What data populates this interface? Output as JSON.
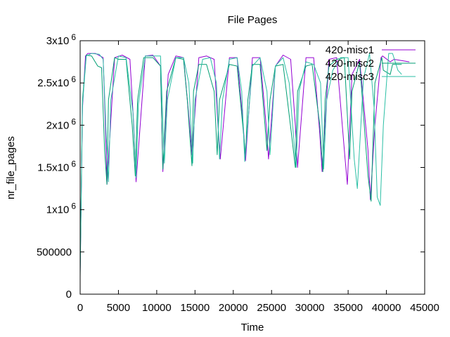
{
  "chart_data": {
    "type": "line",
    "title": "File Pages",
    "xlabel": "Time",
    "ylabel": "nr_file_pages",
    "xlim": [
      0,
      45000
    ],
    "ylim": [
      0,
      3000000
    ],
    "x_ticks": [
      {
        "value": 0,
        "label": "0"
      },
      {
        "value": 5000,
        "label": "5000"
      },
      {
        "value": 10000,
        "label": "10000"
      },
      {
        "value": 15000,
        "label": "15000"
      },
      {
        "value": 20000,
        "label": "20000"
      },
      {
        "value": 25000,
        "label": "25000"
      },
      {
        "value": 30000,
        "label": "30000"
      },
      {
        "value": 35000,
        "label": "35000"
      },
      {
        "value": 40000,
        "label": "40000"
      },
      {
        "value": 45000,
        "label": "45000"
      }
    ],
    "y_ticks": [
      {
        "value": 0,
        "base": "0",
        "sup": ""
      },
      {
        "value": 500000,
        "base": "500000",
        "sup": ""
      },
      {
        "value": 1000000,
        "base": "1x10",
        "sup": "6"
      },
      {
        "value": 1500000,
        "base": "1.5x10",
        "sup": "6"
      },
      {
        "value": 2000000,
        "base": "2x10",
        "sup": "6"
      },
      {
        "value": 2500000,
        "base": "2.5x10",
        "sup": "6"
      },
      {
        "value": 3000000,
        "base": "3x10",
        "sup": "6"
      }
    ],
    "grid": false,
    "legend_position": "top-right",
    "series": [
      {
        "name": "420-misc1",
        "color": "#9400d3",
        "x": [
          0,
          300,
          700,
          1000,
          2000,
          3000,
          3300,
          3500,
          4500,
          5500,
          6500,
          7000,
          7300,
          8500,
          9500,
          10500,
          10800,
          11500,
          12500,
          13500,
          14300,
          14600,
          15500,
          16500,
          17500,
          18000,
          18300,
          19500,
          20500,
          21300,
          21600,
          22500,
          23500,
          24300,
          24600,
          25500,
          26500,
          27500,
          28100,
          28400,
          29500,
          30500,
          31300,
          31600,
          32500,
          33500,
          34600,
          34900,
          35500,
          36500,
          37600,
          37900,
          38500,
          39300,
          39500,
          40500,
          41000,
          43000
        ],
        "y": [
          250000,
          2200000,
          2820000,
          2850000,
          2850000,
          2800000,
          2000000,
          1300000,
          2800000,
          2830000,
          2780000,
          2000000,
          1330000,
          2820000,
          2830000,
          2700000,
          1450000,
          2600000,
          2820000,
          2800000,
          2000000,
          1650000,
          2800000,
          2820000,
          2780000,
          2000000,
          1600000,
          2800000,
          2800000,
          2000000,
          1580000,
          2800000,
          2800000,
          2000000,
          1600000,
          2700000,
          2830000,
          2780000,
          2000000,
          1500000,
          2800000,
          2800000,
          1900000,
          1450000,
          2780000,
          2800000,
          1600000,
          1300000,
          2600000,
          2780000,
          1700000,
          1120000,
          2000000,
          2800000,
          2820000,
          2750000,
          2780000,
          2750000
        ]
      },
      {
        "name": "420-misc2",
        "color": "#009e73",
        "x": [
          0,
          300,
          800,
          1500,
          2300,
          2800,
          3200,
          3500,
          3700,
          4500,
          5000,
          6000,
          6800,
          7200,
          7500,
          8300,
          9500,
          10500,
          10800,
          11300,
          12500,
          13500,
          14000,
          14600,
          14800,
          15500,
          16500,
          17500,
          17900,
          18200,
          19500,
          20500,
          21600,
          21900,
          22500,
          23500,
          24400,
          24800,
          25500,
          26500,
          27600,
          28100,
          28400,
          29500,
          30300,
          31300,
          31700,
          32000,
          32500,
          33500,
          34500,
          35200,
          35500,
          36500,
          37600,
          38000,
          38500,
          39400,
          39600,
          40500,
          40800,
          41000,
          42000
        ],
        "y": [
          200000,
          2300000,
          2830000,
          2820000,
          2700000,
          2680000,
          1700000,
          1300000,
          2300000,
          2800000,
          2780000,
          2780000,
          2000000,
          1400000,
          2300000,
          2800000,
          2800000,
          2700000,
          1480000,
          2400000,
          2800000,
          2780000,
          2300000,
          1520000,
          2400000,
          2720000,
          2720000,
          2400000,
          1650000,
          2300000,
          2720000,
          2700000,
          1650000,
          2300000,
          2720000,
          2720000,
          1700000,
          2300000,
          2700000,
          2720000,
          1900000,
          1500000,
          2400000,
          2700000,
          2720000,
          2000000,
          1450000,
          2300000,
          2700000,
          2780000,
          2800000,
          1600000,
          2400000,
          2750000,
          1400000,
          1100000,
          2500000,
          2800000,
          2650000,
          2600000,
          2720000,
          2720000,
          2720000
        ]
      },
      {
        "name": "420-misc3",
        "color": "#2bbfa5",
        "x": [
          0,
          300,
          800,
          1500,
          2500,
          3000,
          3400,
          3700,
          4000,
          5000,
          6000,
          6900,
          7300,
          7600,
          8500,
          9500,
          10500,
          11000,
          11400,
          12500,
          13500,
          14200,
          14700,
          15000,
          16000,
          17000,
          17800,
          18200,
          18600,
          19500,
          20500,
          21100,
          21500,
          22500,
          23500,
          24400,
          24800,
          25500,
          26500,
          27300,
          28200,
          28600,
          29500,
          30500,
          31400,
          31800,
          32200,
          33000,
          34000,
          35000,
          35800,
          36200,
          37000,
          37800,
          38400,
          38800,
          39200,
          39600,
          40300,
          40800,
          41500,
          42000
        ],
        "y": [
          300000,
          2250000,
          2820000,
          2850000,
          2840000,
          2780000,
          1900000,
          1330000,
          2300000,
          2820000,
          2800000,
          2150000,
          1380000,
          2250000,
          2820000,
          2820000,
          2820000,
          1550000,
          2300000,
          2800000,
          2800000,
          2500000,
          1550000,
          2300000,
          2780000,
          2800000,
          2500000,
          1600000,
          2300000,
          2780000,
          2800000,
          2400000,
          1570000,
          2700000,
          2800000,
          2400000,
          1650000,
          2700000,
          2800000,
          2500000,
          1500000,
          2400000,
          2750000,
          2720000,
          2500000,
          1480000,
          2300000,
          2650000,
          2800000,
          2800000,
          1600000,
          1250000,
          2550000,
          2850000,
          2200000,
          1150000,
          1050000,
          2000000,
          2850000,
          2850000,
          2650000,
          2600000
        ]
      }
    ]
  }
}
